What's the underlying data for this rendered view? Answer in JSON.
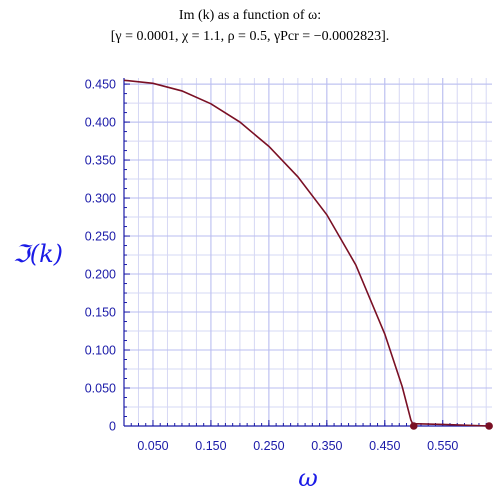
{
  "title_line1": "Im (k) as a function of ω:",
  "title_line2": "[γ = 0.0001, χ = 1.1, ρ = 0.5, γPcr = −0.0002823].",
  "chart_data": {
    "type": "line",
    "xlabel": "ω",
    "ylabel": "ℑ(k)",
    "xlim": [
      0.0,
      0.635
    ],
    "ylim": [
      0.0,
      0.458
    ],
    "x_ticks": [
      "0.050",
      "0.150",
      "0.250",
      "0.350",
      "0.450",
      "0.550"
    ],
    "y_ticks": [
      "0",
      "0.050",
      "0.100",
      "0.150",
      "0.200",
      "0.250",
      "0.300",
      "0.350",
      "0.400",
      "0.450"
    ],
    "grid": true,
    "line_color": "#7a1024",
    "series": [
      {
        "values_x": [
          0.0,
          0.05,
          0.1,
          0.15,
          0.2,
          0.25,
          0.3,
          0.35,
          0.4,
          0.45,
          0.48,
          0.495,
          0.5,
          0.5,
          0.55,
          0.63
        ],
        "values_y": [
          0.455,
          0.451,
          0.441,
          0.424,
          0.4,
          0.368,
          0.328,
          0.278,
          0.212,
          0.121,
          0.052,
          0.008,
          0.0,
          0.003,
          0.002,
          0.0
        ]
      }
    ],
    "markers": [
      {
        "x": 0.5,
        "y": 0.0
      },
      {
        "x": 0.63,
        "y": 0.0
      }
    ]
  }
}
